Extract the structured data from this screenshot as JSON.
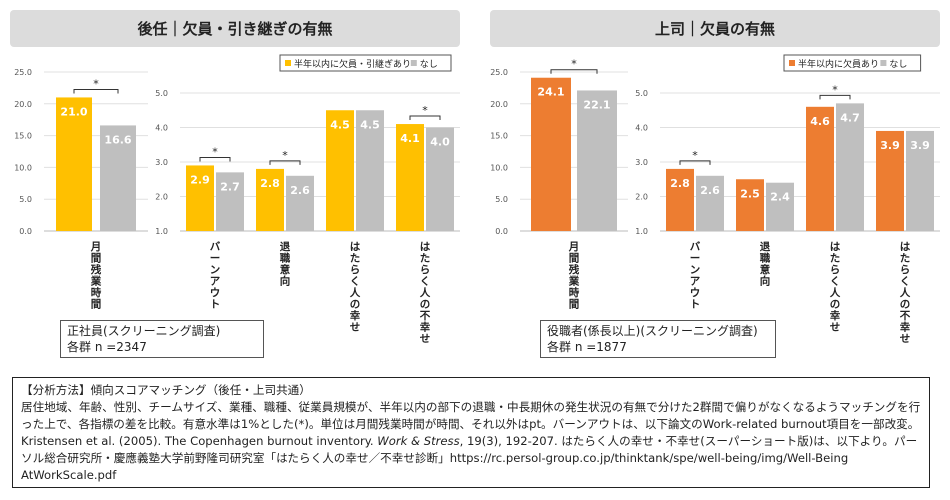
{
  "colors": {
    "orange": "#ED7D31",
    "yellow": "#FFC000",
    "gray": "#BFBFBF",
    "header_bg": "#DCDCDC"
  },
  "panels": {
    "left": {
      "title": "後任｜欠員・引き継ぎの有無",
      "sample_title": "正社員(スクリーニング調査)",
      "sample_n": "各群 n =2347"
    },
    "right": {
      "title": "上司｜欠員の有無",
      "sample_title": "役職者(係長以上)(スクリーニング調査)",
      "sample_n": "各群 n =1877"
    }
  },
  "chart_data": [
    {
      "id": "left-hours",
      "type": "bar",
      "ylim": [
        0,
        25
      ],
      "ticks": [
        "0.0",
        "5.0",
        "10.0",
        "15.0",
        "20.0",
        "25.0"
      ],
      "categories": [
        "月間残業時間"
      ],
      "colors": [
        "#FFC000",
        "#BFBFBF"
      ],
      "series": [
        {
          "name": "半年以内に欠員・引継ぎあり",
          "values": [
            21.0
          ],
          "labels": [
            "21.0"
          ]
        },
        {
          "name": "なし",
          "values": [
            16.6
          ],
          "labels": [
            "16.6"
          ]
        }
      ],
      "significance": [
        "*"
      ]
    },
    {
      "id": "left-scores",
      "type": "bar",
      "ylim": [
        1,
        5
      ],
      "ticks": [
        "1.0",
        "2.0",
        "3.0",
        "4.0",
        "5.0"
      ],
      "categories": [
        "バーンアウト",
        "退職意向",
        "はたらく人の幸せ",
        "はたらく人の不幸せ"
      ],
      "colors": [
        "#FFC000",
        "#BFBFBF"
      ],
      "legend": [
        "半年以内に欠員・引継ぎあり",
        "なし"
      ],
      "series": [
        {
          "name": "半年以内に欠員・引継ぎあり",
          "values": [
            2.9,
            2.8,
            4.5,
            4.1
          ],
          "labels": [
            "2.9",
            "2.8",
            "4.5",
            "4.1"
          ]
        },
        {
          "name": "なし",
          "values": [
            2.7,
            2.6,
            4.5,
            4.0
          ],
          "labels": [
            "2.7",
            "2.6",
            "4.5",
            "4.0"
          ]
        }
      ],
      "significance": [
        "*",
        "*",
        "",
        "*"
      ]
    },
    {
      "id": "right-hours",
      "type": "bar",
      "ylim": [
        0,
        25
      ],
      "ticks": [
        "0.0",
        "5.0",
        "10.0",
        "15.0",
        "20.0",
        "25.0"
      ],
      "categories": [
        "月間残業時間"
      ],
      "colors": [
        "#ED7D31",
        "#BFBFBF"
      ],
      "series": [
        {
          "name": "半年以内に欠員あり",
          "values": [
            24.1
          ],
          "labels": [
            "24.1"
          ]
        },
        {
          "name": "なし",
          "values": [
            22.1
          ],
          "labels": [
            "22.1"
          ]
        }
      ],
      "significance": [
        "*"
      ]
    },
    {
      "id": "right-scores",
      "type": "bar",
      "ylim": [
        1,
        5
      ],
      "ticks": [
        "1.0",
        "2.0",
        "3.0",
        "4.0",
        "5.0"
      ],
      "categories": [
        "バーンアウト",
        "退職意向",
        "はたらく人の幸せ",
        "はたらく人の不幸せ"
      ],
      "colors": [
        "#ED7D31",
        "#BFBFBF"
      ],
      "legend": [
        "半年以内に欠員あり",
        "なし"
      ],
      "series": [
        {
          "name": "半年以内に欠員あり",
          "values": [
            2.8,
            2.5,
            4.6,
            3.9
          ],
          "labels": [
            "2.8",
            "2.5",
            "4.6",
            "3.9"
          ]
        },
        {
          "name": "なし",
          "values": [
            2.6,
            2.4,
            4.7,
            3.9
          ],
          "labels": [
            "2.6",
            "2.4",
            "4.7",
            "3.9"
          ]
        }
      ],
      "significance": [
        "*",
        "",
        "*",
        ""
      ]
    }
  ],
  "method": {
    "heading": "【分析方法】傾向スコアマッチング（後任・上司共通）",
    "line1": "居住地域、年齢、性別、チームサイズ、業種、職種、従業員規模が、半年以内の部下の退職・中長期休の発生状況の有無で分けた2群間で偏りがなくなるようマッチングを行った上で、各指標の差を比較。有意水準は1%とした(*)。単位は月間残業時間が時間、それ以外はpt。バーンアウトは、以下論文のWork-related burnout項目を一部改変。",
    "cite_pre": "Kristensen et al. (2005). The Copenhagen burnout inventory. ",
    "cite_journal": "Work & Stress",
    "cite_post": ", 19(3), 192-207.  はたらく人の幸せ・不幸せ(スーパーショート版)は、以下より。パーソル総合研究所・慶應義塾大学前野隆司研究室「はたらく人の幸せ／不幸せ診断」https://rc.persol-group.co.jp/thinktank/spe/well-being/img/Well-Being AtWorkScale.pdf"
  }
}
